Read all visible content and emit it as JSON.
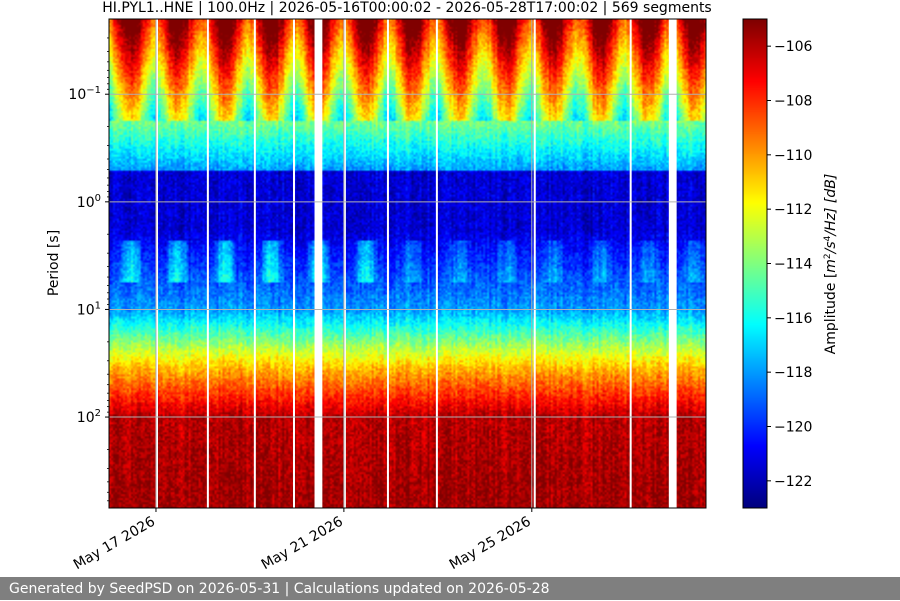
{
  "chart_data": {
    "type": "heatmap",
    "title": "HI.PYL1..HNE | 100.0Hz | 2026-05-16T00:00:02 - 2026-05-28T17:00:02 | 569 segments",
    "xlabel": "",
    "ylabel": "Period [s]",
    "x_range": [
      "2026-05-16T00:00:02",
      "2026-05-28T17:00:02"
    ],
    "x_ticks": [
      {
        "date": "2026-05-17",
        "label": "May 17 2026"
      },
      {
        "date": "2026-05-21",
        "label": "May 21 2026"
      },
      {
        "date": "2026-05-25",
        "label": "May 25 2026"
      }
    ],
    "y_scale": "log",
    "y_inverted": true,
    "y_range": [
      0.02,
      700
    ],
    "y_ticks": [
      {
        "value": 0.1,
        "base": "10",
        "exp": "−1"
      },
      {
        "value": 1,
        "base": "10",
        "exp": "0"
      },
      {
        "value": 10,
        "base": "10",
        "exp": "1"
      },
      {
        "value": 100,
        "base": "10",
        "exp": "2"
      }
    ],
    "grid": true,
    "colorbar": {
      "label_prefix": "Amplitude [",
      "label_unit": "m",
      "label_sup1": "2",
      "label_mid": "/s",
      "label_sup2": "4",
      "label_suffix": "/Hz] [dB]",
      "colormap": "jet",
      "range": [
        -123,
        -105
      ],
      "ticks": [
        -106,
        -108,
        -110,
        -112,
        -114,
        -116,
        -118,
        -120,
        -122
      ],
      "tick_labels": [
        "−106",
        "−108",
        "−110",
        "−112",
        "−114",
        "−116",
        "−118",
        "−120",
        "−122"
      ]
    },
    "data_gaps": [
      {
        "start": "2026-05-17T00:00:00",
        "end": "2026-05-17T01:00:00"
      },
      {
        "start": "2026-05-18T02:00:00",
        "end": "2026-05-18T03:00:00"
      },
      {
        "start": "2026-05-19T02:00:00",
        "end": "2026-05-19T03:00:00"
      },
      {
        "start": "2026-05-19T22:00:00",
        "end": "2026-05-19T23:00:00"
      },
      {
        "start": "2026-05-20T09:00:00",
        "end": "2026-05-20T13:00:00"
      },
      {
        "start": "2026-05-21T00:00:00",
        "end": "2026-05-21T01:00:00"
      },
      {
        "start": "2026-05-21T22:00:00",
        "end": "2026-05-21T23:00:00"
      },
      {
        "start": "2026-05-22T23:00:00",
        "end": "2026-05-23T00:00:00"
      },
      {
        "start": "2026-05-25T01:00:00",
        "end": "2026-05-25T02:00:00"
      },
      {
        "start": "2026-05-27T02:00:00",
        "end": "2026-05-27T03:00:00"
      },
      {
        "start": "2026-05-27T22:00:00",
        "end": "2026-05-28T02:00:00"
      }
    ]
  },
  "footer": {
    "text": "Generated by SeedPSD on 2026-05-31 | Calculations updated on 2026-05-28"
  }
}
